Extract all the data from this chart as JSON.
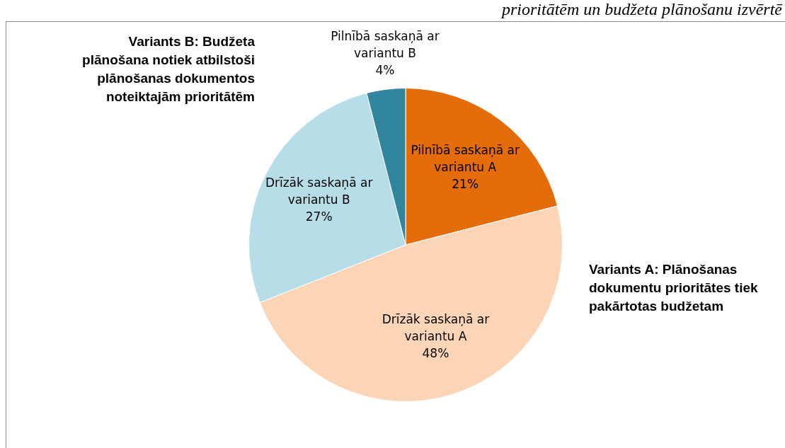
{
  "chart_data": {
    "type": "pie",
    "title": "prioritātēm un budžeta plānošanu izvērtē",
    "categories": [
      "Pilnībā saskaņā ar variantu A",
      "Drīzāk saskaņā ar variantu A",
      "Drīzāk saskaņā ar variantu B",
      "Pilnībā saskaņā ar variantu B"
    ],
    "values": [
      21,
      48,
      27,
      4
    ],
    "colors": [
      "#e46c0a",
      "#fbd5b5",
      "#b7dee8",
      "#31859c"
    ],
    "value_labels": [
      "21%",
      "48%",
      "27%",
      "4%"
    ],
    "annotations": [
      "Variants B: Budžeta plānošana notiek atbilstoši plānošanas dokumentos noteiktajām prioritātēm",
      "Variants A: Plānošanas dokumentu prioritātes tiek pakārtotas budžetam"
    ],
    "legend": false
  }
}
